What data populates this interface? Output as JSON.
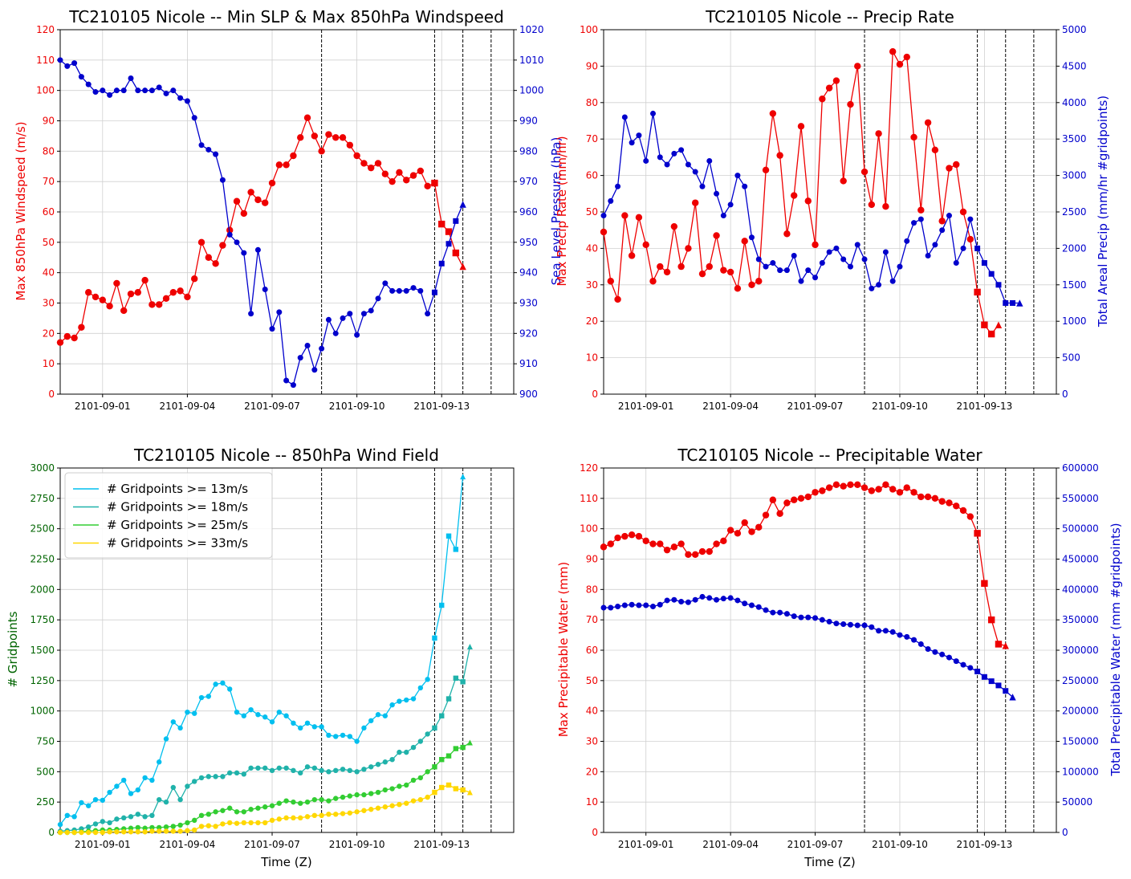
{
  "colors": {
    "red": "#ee0000",
    "blue": "#0000cc",
    "green_axis": "#006400",
    "c13": "#00bfef",
    "c18": "#20b2aa",
    "c25": "#32cd32",
    "c33": "#ffd700",
    "grid": "#d0d0d0"
  },
  "date_ticks": [
    "2101-09-01",
    "2101-09-04",
    "2101-09-07",
    "2101-09-10",
    "2101-09-13"
  ],
  "date_tick_days": [
    1,
    4,
    7,
    10,
    13
  ],
  "vlines_days": [
    8.75,
    12.75,
    13.75,
    14.75
  ],
  "xlim_days": [
    30.5,
    15.55
  ],
  "charts": [
    {
      "id": "slp-wind",
      "type": "line",
      "title": "TC210105 Nicole -- Min SLP & Max 850hPa Windspeed",
      "ylabel": "Max 850hPa Windspeed (m/s)",
      "ylabel_overlap": "Max Precip Rate (mm/hr)",
      "y2label": "Sea Level Pressure (hPa)",
      "xlabel": "",
      "ylim": [
        0,
        120
      ],
      "yticks": [
        "0",
        "10",
        "20",
        "30",
        "40",
        "50",
        "60",
        "70",
        "80",
        "90",
        "100",
        "110",
        "120"
      ],
      "y2lim": [
        900,
        1020
      ],
      "y2ticks": [
        "900",
        "910",
        "920",
        "930",
        "940",
        "950",
        "960",
        "970",
        "980",
        "990",
        "1000",
        "1010",
        "1020"
      ],
      "series": [
        {
          "axis": "left",
          "color": "red",
          "marker": "circle",
          "x_start": 30.5,
          "step": 0.25,
          "values": [
            17,
            19,
            18.5,
            22,
            33.5,
            32,
            31,
            29,
            36.5,
            27.5,
            33,
            33.5,
            37.5,
            29.5,
            29.5,
            31.5,
            33.5,
            34,
            32,
            38,
            50,
            45,
            43,
            49,
            54,
            63.5,
            59.5,
            66.5,
            64,
            63,
            69.5,
            75.5,
            75.5,
            78.5,
            84.5,
            91,
            85,
            80,
            85.5,
            84.5,
            84.5,
            82,
            78.5,
            76,
            74.5,
            76,
            72.5,
            70,
            73,
            70.5,
            72,
            73.5,
            68.5,
            69.5,
            56,
            53.5,
            46.5,
            42
          ]
        },
        {
          "axis": "right",
          "color": "blue",
          "marker": "circle",
          "x_start": 30.5,
          "step": 0.25,
          "values": [
            1010,
            1008,
            1009,
            1004.5,
            1002,
            999.5,
            1000,
            998.5,
            1000,
            1000,
            1004,
            1000,
            1000,
            1000,
            1001,
            999,
            1000,
            997.5,
            996.5,
            991,
            982,
            980.5,
            979,
            970.5,
            952.5,
            950,
            946.5,
            926.5,
            947.5,
            934.5,
            921.5,
            927,
            904.5,
            903,
            912,
            916,
            908,
            915,
            924.5,
            920,
            925,
            926.5,
            919.5,
            926.5,
            927.5,
            931.5,
            936.5,
            934,
            934,
            934,
            935,
            934,
            926.5,
            933.5,
            943,
            949.5,
            957,
            962.5
          ]
        }
      ]
    },
    {
      "id": "precip-rate",
      "type": "line",
      "title": "TC210105 Nicole -- Precip Rate",
      "ylabel": "",
      "y2label": "Total Areal Precip (mm/hr #gridpoints)",
      "xlabel": "",
      "ylim": [
        0,
        100
      ],
      "yticks": [
        "0",
        "10",
        "20",
        "30",
        "40",
        "50",
        "60",
        "70",
        "80",
        "90",
        "100"
      ],
      "y2lim": [
        0,
        5000
      ],
      "y2ticks": [
        "0",
        "500",
        "1000",
        "1500",
        "2000",
        "2500",
        "3000",
        "3500",
        "4000",
        "4500",
        "5000"
      ],
      "series": [
        {
          "axis": "left",
          "color": "red",
          "marker": "circle",
          "x_start": 30.5,
          "step": 0.25,
          "values": [
            44.5,
            31,
            26,
            49,
            38,
            48.5,
            41,
            31,
            35,
            33.5,
            46,
            35,
            40,
            52.5,
            33,
            35,
            43.5,
            34,
            33.5,
            29,
            42,
            30,
            31,
            61.5,
            77,
            65.5,
            44,
            54.5,
            73.5,
            53,
            41,
            81,
            84,
            86,
            58.5,
            79.5,
            90,
            61,
            52,
            71.5,
            51.5,
            94,
            90.5,
            92.5,
            70.5,
            50.5,
            74.5,
            67,
            47.5,
            62,
            63,
            50,
            42.5,
            28,
            19,
            16.5,
            19
          ]
        },
        {
          "axis": "right",
          "color": "blue",
          "marker": "circle",
          "x_start": 30.5,
          "step": 0.25,
          "values": [
            2450,
            2650,
            2850,
            3800,
            3450,
            3550,
            3200,
            3850,
            3250,
            3150,
            3300,
            3350,
            3150,
            3050,
            2850,
            3200,
            2750,
            2450,
            2600,
            3000,
            2850,
            2150,
            1850,
            1750,
            1800,
            1700,
            1700,
            1900,
            1550,
            1700,
            1600,
            1800,
            1950,
            2000,
            1850,
            1750,
            2050,
            1850,
            1450,
            1500,
            1950,
            1550,
            1750,
            2100,
            2350,
            2400,
            1900,
            2050,
            2250,
            2450,
            1800,
            2000,
            2400,
            2000,
            1800,
            1650,
            1500,
            1250,
            1250,
            1250
          ]
        }
      ]
    },
    {
      "id": "wind-field",
      "type": "line",
      "title": "TC210105 Nicole -- 850hPa Wind Field",
      "ylabel": "# Gridpoints",
      "xlabel": "Time (Z)",
      "ylim": [
        0,
        3000
      ],
      "yticks": [
        "0",
        "250",
        "500",
        "750",
        "1000",
        "1250",
        "1500",
        "1750",
        "2000",
        "2250",
        "2500",
        "2750",
        "3000"
      ],
      "legend_position": "upper-left",
      "series": [
        {
          "name": "# Gridpoints >= 13m/s",
          "color": "c13",
          "marker": "circle",
          "x_start": 30.5,
          "step": 0.25,
          "values": [
            65,
            140,
            130,
            245,
            220,
            270,
            265,
            330,
            380,
            430,
            320,
            350,
            450,
            430,
            580,
            770,
            910,
            860,
            990,
            980,
            1110,
            1120,
            1220,
            1230,
            1180,
            990,
            960,
            1010,
            970,
            950,
            910,
            990,
            960,
            900,
            860,
            900,
            870,
            870,
            800,
            790,
            800,
            790,
            750,
            860,
            920,
            970,
            960,
            1050,
            1080,
            1090,
            1100,
            1190,
            1260,
            1600,
            1870,
            2440,
            2330,
            2930
          ]
        },
        {
          "name": "# Gridpoints >= 18m/s",
          "color": "c18",
          "marker": "circle",
          "x_start": 30.5,
          "step": 0.25,
          "values": [
            10,
            15,
            20,
            30,
            45,
            70,
            90,
            80,
            110,
            120,
            130,
            150,
            130,
            140,
            270,
            250,
            370,
            270,
            380,
            420,
            450,
            460,
            460,
            460,
            490,
            490,
            480,
            530,
            530,
            530,
            510,
            530,
            530,
            510,
            490,
            540,
            530,
            510,
            500,
            510,
            520,
            510,
            500,
            520,
            540,
            560,
            580,
            600,
            660,
            660,
            700,
            750,
            810,
            860,
            960,
            1100,
            1270,
            1240,
            1530
          ]
        },
        {
          "name": "# Gridpoints >= 25m/s",
          "color": "c25",
          "marker": "circle",
          "x_start": 30.5,
          "step": 0.25,
          "values": [
            0,
            0,
            0,
            5,
            10,
            15,
            20,
            20,
            25,
            30,
            35,
            40,
            35,
            40,
            40,
            45,
            50,
            60,
            80,
            100,
            140,
            150,
            170,
            180,
            200,
            170,
            170,
            190,
            200,
            210,
            220,
            240,
            260,
            250,
            240,
            250,
            270,
            270,
            260,
            280,
            290,
            300,
            310,
            310,
            320,
            330,
            350,
            360,
            380,
            390,
            430,
            450,
            500,
            540,
            600,
            630,
            690,
            700,
            740
          ]
        },
        {
          "name": "# Gridpoints >= 33m/s",
          "color": "c33",
          "marker": "circle",
          "x_start": 30.5,
          "step": 0.25,
          "values": [
            0,
            0,
            0,
            0,
            0,
            0,
            0,
            5,
            5,
            5,
            5,
            5,
            5,
            10,
            10,
            10,
            10,
            10,
            15,
            20,
            50,
            55,
            50,
            70,
            80,
            75,
            80,
            80,
            80,
            80,
            100,
            110,
            120,
            120,
            120,
            130,
            140,
            140,
            150,
            150,
            155,
            160,
            170,
            180,
            190,
            200,
            210,
            220,
            230,
            240,
            260,
            270,
            290,
            330,
            370,
            390,
            360,
            350,
            330
          ]
        }
      ]
    },
    {
      "id": "precip-water",
      "type": "line",
      "title": "TC210105 Nicole -- Precipitable Water",
      "ylabel": "Max Precipitable Water (mm)",
      "y2label": "Total Precipitable Water (mm #gridpoints)",
      "xlabel": "Time (Z)",
      "ylim": [
        0,
        120
      ],
      "yticks": [
        "0",
        "10",
        "20",
        "30",
        "40",
        "50",
        "60",
        "70",
        "80",
        "90",
        "100",
        "110",
        "120"
      ],
      "y2lim": [
        0,
        600000
      ],
      "y2ticks": [
        "0",
        "50000",
        "100000",
        "150000",
        "200000",
        "250000",
        "300000",
        "350000",
        "400000",
        "450000",
        "500000",
        "550000",
        "600000"
      ],
      "series": [
        {
          "axis": "left",
          "color": "red",
          "marker": "circle",
          "x_start": 30.5,
          "step": 0.25,
          "values": [
            94,
            95,
            97,
            97.5,
            98,
            97.5,
            96,
            95,
            95,
            93,
            94,
            95,
            91.5,
            91.5,
            92.5,
            92.5,
            95,
            96,
            99.5,
            98.5,
            102,
            99,
            100.5,
            104.5,
            109.5,
            105,
            108.5,
            109.5,
            110,
            110.5,
            112,
            112.5,
            113.5,
            114.5,
            114,
            114.5,
            114.5,
            113.5,
            112.5,
            113,
            114.5,
            113,
            112,
            113.5,
            112,
            110.5,
            110.5,
            110,
            109,
            108.5,
            107.5,
            106,
            104,
            98.5,
            82,
            70,
            62,
            61.5
          ]
        },
        {
          "axis": "right",
          "color": "blue",
          "marker": "circle",
          "x_start": 30.5,
          "step": 0.25,
          "values": [
            370000,
            370000,
            372000,
            374000,
            375000,
            374000,
            374000,
            372000,
            375000,
            382000,
            383000,
            380000,
            379000,
            383000,
            388000,
            386000,
            383000,
            385000,
            386000,
            382000,
            377000,
            374000,
            371000,
            366000,
            362000,
            362000,
            360000,
            356000,
            354000,
            354000,
            353000,
            350000,
            347000,
            344000,
            343000,
            342000,
            341000,
            341000,
            338000,
            332000,
            332000,
            330000,
            325000,
            322000,
            317000,
            310000,
            302000,
            297000,
            293000,
            288000,
            282000,
            276000,
            271000,
            265000,
            256000,
            249000,
            242000,
            233000,
            223000
          ]
        }
      ]
    }
  ]
}
